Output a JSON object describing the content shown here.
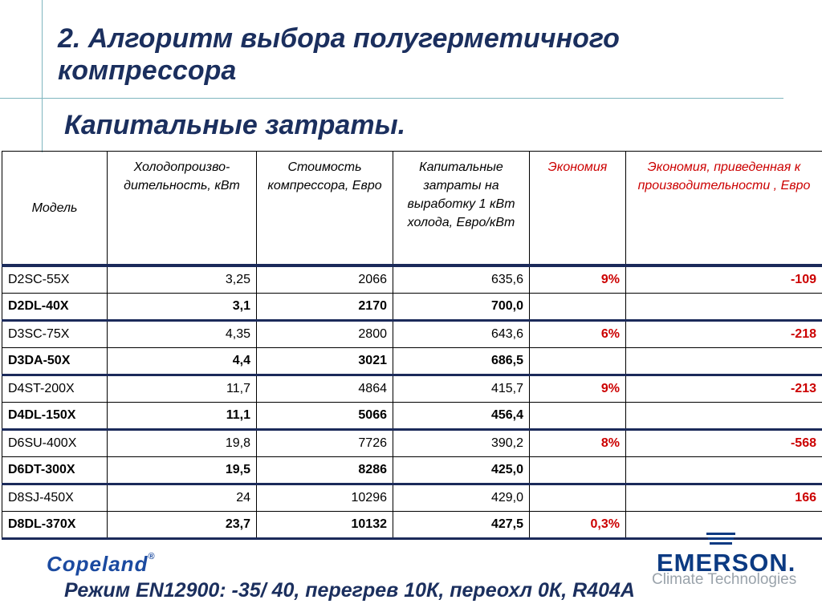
{
  "title": "2. Алгоритм выбора полугерметичного компрессора",
  "subtitle": "Капитальные затраты.",
  "table": {
    "headers": {
      "model": "Модель",
      "capacity": "Холодопроизво-дительность, кВт",
      "cost": "Стоимость компрессора, Евро",
      "capex": "Капитальные затраты на выработку 1 кВт холода, Евро/кВт",
      "saving": "Экономия",
      "saving_norm": "Экономия, приведенная к производительности , Евро"
    },
    "rows": [
      {
        "model": "D2SC-55X",
        "capacity": "3,25",
        "cost": "2066",
        "capex": "635,6",
        "saving": "9%",
        "saving_norm": "-109"
      },
      {
        "model": "D2DL-40X",
        "capacity": "3,1",
        "cost": "2170",
        "capex": "700,0",
        "saving": "",
        "saving_norm": ""
      },
      {
        "model": "D3SC-75X",
        "capacity": "4,35",
        "cost": "2800",
        "capex": "643,6",
        "saving": "6%",
        "saving_norm": "-218"
      },
      {
        "model": "D3DA-50X",
        "capacity": "4,4",
        "cost": "3021",
        "capex": "686,5",
        "saving": "",
        "saving_norm": ""
      },
      {
        "model": "D4ST-200X",
        "capacity": "11,7",
        "cost": "4864",
        "capex": "415,7",
        "saving": "9%",
        "saving_norm": "-213"
      },
      {
        "model": "D4DL-150X",
        "capacity": "11,1",
        "cost": "5066",
        "capex": "456,4",
        "saving": "",
        "saving_norm": ""
      },
      {
        "model": "D6SU-400X",
        "capacity": "19,8",
        "cost": "7726",
        "capex": "390,2",
        "saving": "8%",
        "saving_norm": "-568"
      },
      {
        "model": "D6DT-300X",
        "capacity": "19,5",
        "cost": "8286",
        "capex": "425,0",
        "saving": "",
        "saving_norm": ""
      },
      {
        "model": "D8SJ-450X",
        "capacity": "24",
        "cost": "10296",
        "capex": "429,0",
        "saving": "",
        "saving_norm": "166"
      },
      {
        "model": "D8DL-370X",
        "capacity": "23,7",
        "cost": "10132",
        "capex": "427,5",
        "saving": "0,3%",
        "saving_norm": ""
      }
    ]
  },
  "brand_left": "Copeland",
  "brand_left_mark": "®",
  "brand_right": "EMERSON.",
  "brand_right_sub": "Climate Technologies",
  "footer": "Режим EN12900: -35/ 40, перегрев 10К, переохл 0К, R404A",
  "colors": {
    "title": "#1b2f5e",
    "accent_red": "#cc0000",
    "rule": "#7fb6bf",
    "brand_blue": "#0b3a82"
  }
}
